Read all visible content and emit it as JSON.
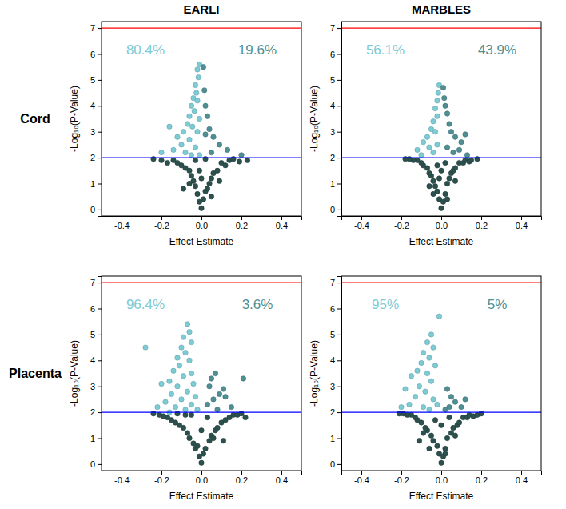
{
  "column_labels": [
    "EARLI",
    "MARBLES"
  ],
  "row_labels": [
    "Cord",
    "Placenta"
  ],
  "chart_data": [
    {
      "type": "scatter",
      "marker": "circle",
      "x_label": "Effect Estimate",
      "y_label": "-Log₁₀(P-Value)",
      "xlim": [
        -0.5,
        0.5
      ],
      "xticks": [
        -0.4,
        -0.2,
        {
          "value": 0,
          "label": "0.0"
        },
        0.2,
        0.4
      ],
      "ylim": [
        -0.25,
        7.25
      ],
      "yticks": [
        0,
        1,
        2,
        3,
        4,
        5,
        6,
        7
      ],
      "reference_lines": [
        {
          "value": 7,
          "color": "#ff0000"
        },
        {
          "value": 2,
          "color": "#0000ff"
        }
      ],
      "annotations": [
        {
          "text": "80.4%",
          "color": "#7ccbd5"
        },
        {
          "text": "19.6%",
          "color": "#4f8f94"
        }
      ],
      "series": [
        {
          "color": "#2c504d",
          "x": [
            0,
            -0.01,
            0.01,
            -0.02,
            0.02,
            -0.03,
            0.03,
            -0.04,
            0.04,
            -0.05,
            0.05,
            -0.06,
            0.06,
            -0.08,
            0.08,
            -0.1,
            0.1,
            -0.12,
            0.12,
            -0.14,
            0.14,
            -0.17,
            0.16,
            -0.2,
            0.19,
            -0.24,
            0.23,
            -0.03,
            0.02,
            -0.06,
            0.05,
            -0.01,
            0.0,
            -0.09,
            0.09
          ],
          "values": [
            0.05,
            0.3,
            0.4,
            0.6,
            0.7,
            0.9,
            0.8,
            1.1,
            1.0,
            1.3,
            1.2,
            1.5,
            1.4,
            1.6,
            1.5,
            1.7,
            1.8,
            1.8,
            1.7,
            1.9,
            1.9,
            1.8,
            1.95,
            1.9,
            1.85,
            1.95,
            1.9,
            1.9,
            1.95,
            1.0,
            0.5,
            1.5,
            1.2,
            0.8,
            1.1
          ]
        },
        {
          "color": "#7ccbd5",
          "x": [
            -0.01,
            -0.02,
            -0.015,
            -0.03,
            -0.025,
            -0.04,
            -0.02,
            -0.05,
            -0.035,
            -0.06,
            -0.01,
            -0.07,
            -0.045,
            -0.09,
            -0.02,
            -0.12,
            -0.06,
            -0.16,
            -0.1,
            -0.03,
            -0.14,
            -0.08,
            -0.05,
            -0.2,
            -0.01
          ],
          "values": [
            5.6,
            5.4,
            5.1,
            4.8,
            4.5,
            4.3,
            4.2,
            4.0,
            3.8,
            3.6,
            3.5,
            3.3,
            3.2,
            3.0,
            3.0,
            2.8,
            2.7,
            3.2,
            2.5,
            2.4,
            2.3,
            2.2,
            2.1,
            2.2,
            2.1
          ]
        },
        {
          "color": "#4f8f94",
          "x": [
            0.01,
            0.015,
            0.02,
            0.03,
            0.04,
            0.06,
            0.09,
            0.13,
            0.2,
            0.05,
            0.02
          ],
          "values": [
            5.5,
            4.6,
            4.0,
            3.6,
            3.1,
            2.8,
            2.5,
            2.3,
            2.1,
            2.2,
            2.9
          ]
        }
      ]
    },
    {
      "type": "scatter",
      "marker": "circle",
      "x_label": "Effect Estimate",
      "y_label": "-Log₁₀(P-Value)",
      "xlim": [
        -0.5,
        0.5
      ],
      "xticks": [
        -0.4,
        -0.2,
        {
          "value": 0,
          "label": "0.0"
        },
        0.2,
        0.4
      ],
      "ylim": [
        -0.25,
        7.25
      ],
      "yticks": [
        0,
        1,
        2,
        3,
        4,
        5,
        6,
        7
      ],
      "reference_lines": [
        {
          "value": 7,
          "color": "#ff0000"
        },
        {
          "value": 2,
          "color": "#0000ff"
        }
      ],
      "annotations": [
        {
          "text": "56.1%",
          "color": "#7ccbd5"
        },
        {
          "text": "43.9%",
          "color": "#4f8f94"
        }
      ],
      "series": [
        {
          "color": "#2c504d",
          "x": [
            0,
            -0.01,
            0.01,
            -0.02,
            0.02,
            -0.03,
            0.03,
            -0.04,
            0.04,
            -0.05,
            0.05,
            -0.06,
            0.06,
            -0.07,
            0.07,
            -0.09,
            0.09,
            -0.1,
            0.11,
            -0.12,
            0.12,
            -0.14,
            0.14,
            -0.16,
            0.15,
            -0.18,
            0.18,
            -0.02,
            0.02,
            -0.04,
            0.03,
            -0.01,
            0.0,
            -0.06,
            0.07
          ],
          "values": [
            0.05,
            0.4,
            0.3,
            0.7,
            0.6,
            0.9,
            1.0,
            1.1,
            1.2,
            1.3,
            1.4,
            1.4,
            1.5,
            1.6,
            1.6,
            1.7,
            1.8,
            1.8,
            1.8,
            1.9,
            1.9,
            1.9,
            1.85,
            1.95,
            1.9,
            1.95,
            1.95,
            1.7,
            1.8,
            0.6,
            0.4,
            1.2,
            1.5,
            0.9,
            1.1
          ]
        },
        {
          "color": "#7ccbd5",
          "x": [
            -0.01,
            -0.015,
            -0.02,
            -0.03,
            -0.02,
            -0.04,
            -0.05,
            -0.03,
            -0.07,
            -0.09,
            -0.06,
            -0.12,
            -0.1,
            -0.04,
            -0.02
          ],
          "values": [
            4.8,
            4.5,
            4.2,
            3.9,
            3.6,
            3.4,
            3.1,
            3.0,
            2.8,
            2.6,
            2.4,
            2.3,
            2.1,
            2.2,
            2.5
          ]
        },
        {
          "color": "#4f8f94",
          "x": [
            0.01,
            0.015,
            0.02,
            0.03,
            0.04,
            0.05,
            0.07,
            0.1,
            0.12,
            0.09,
            0.06,
            0.03,
            0.13
          ],
          "values": [
            4.7,
            4.3,
            4.0,
            3.7,
            3.3,
            3.0,
            2.8,
            2.6,
            2.9,
            2.3,
            2.2,
            2.4,
            2.1
          ]
        }
      ]
    },
    {
      "type": "scatter",
      "marker": "circle",
      "x_label": "Effect Estimate",
      "y_label": "-Log₁₀(P-Value)",
      "xlim": [
        -0.5,
        0.5
      ],
      "xticks": [
        -0.4,
        -0.2,
        {
          "value": 0,
          "label": "0.0"
        },
        0.2,
        0.4
      ],
      "ylim": [
        -0.25,
        7.25
      ],
      "yticks": [
        0,
        1,
        2,
        3,
        4,
        5,
        6,
        7
      ],
      "reference_lines": [
        {
          "value": 7,
          "color": "#ff0000"
        },
        {
          "value": 2,
          "color": "#0000ff"
        }
      ],
      "annotations": [
        {
          "text": "96.4%",
          "color": "#7ccbd5"
        },
        {
          "text": "3.6%",
          "color": "#4f8f94"
        }
      ],
      "series": [
        {
          "color": "#2c504d",
          "x": [
            0,
            -0.01,
            0.01,
            -0.03,
            0.02,
            -0.04,
            0.04,
            -0.06,
            0.05,
            -0.07,
            0.07,
            -0.09,
            0.08,
            -0.11,
            0.1,
            -0.13,
            0.12,
            -0.15,
            0.14,
            -0.17,
            0.16,
            -0.19,
            0.18,
            -0.21,
            0.2,
            -0.24,
            0.22,
            -0.05,
            0.03,
            -0.08,
            0.06,
            -0.02,
            0.0,
            -0.12,
            0.11
          ],
          "values": [
            0.05,
            0.3,
            0.4,
            0.6,
            0.6,
            0.8,
            0.9,
            1.0,
            1.1,
            1.2,
            1.3,
            1.4,
            1.4,
            1.5,
            1.6,
            1.6,
            1.7,
            1.7,
            1.8,
            1.8,
            1.9,
            1.85,
            1.9,
            1.9,
            1.95,
            1.95,
            1.8,
            1.9,
            1.8,
            1.9,
            1.0,
            0.7,
            1.3,
            1.95,
            0.9
          ]
        },
        {
          "color": "#7ccbd5",
          "x": [
            -0.07,
            -0.06,
            -0.09,
            -0.05,
            -0.1,
            -0.28,
            -0.08,
            -0.12,
            -0.06,
            -0.11,
            -0.14,
            -0.05,
            -0.09,
            -0.16,
            -0.04,
            -0.12,
            -0.2,
            -0.07,
            -0.15,
            -0.03,
            -0.1,
            -0.18,
            -0.05,
            -0.13,
            -0.08,
            -0.22,
            -0.02,
            -0.16
          ],
          "values": [
            5.4,
            5.1,
            4.9,
            4.7,
            4.5,
            4.5,
            4.3,
            4.1,
            4.0,
            3.8,
            3.6,
            3.5,
            3.4,
            3.2,
            3.1,
            3.0,
            3.1,
            2.8,
            2.7,
            2.6,
            2.5,
            2.4,
            2.3,
            2.2,
            2.1,
            2.2,
            2.1,
            2.0
          ]
        },
        {
          "color": "#4f8f94",
          "x": [
            0.05,
            0.07,
            0.04,
            0.09,
            0.06,
            0.12,
            0.03,
            0.15,
            0.08,
            0.21,
            0.11
          ],
          "values": [
            3.3,
            3.5,
            3.0,
            2.7,
            2.5,
            2.6,
            2.3,
            2.2,
            2.1,
            3.3,
            2.9
          ]
        }
      ]
    },
    {
      "type": "scatter",
      "marker": "circle",
      "x_label": "Effect Estimate",
      "y_label": "-Log₁₀(P-Value)",
      "xlim": [
        -0.5,
        0.5
      ],
      "xticks": [
        -0.4,
        -0.2,
        {
          "value": 0,
          "label": "0.0"
        },
        0.2,
        0.4
      ],
      "ylim": [
        -0.25,
        7.25
      ],
      "yticks": [
        0,
        1,
        2,
        3,
        4,
        5,
        6,
        7
      ],
      "reference_lines": [
        {
          "value": 7,
          "color": "#ff0000"
        },
        {
          "value": 2,
          "color": "#0000ff"
        }
      ],
      "annotations": [
        {
          "text": "95%",
          "color": "#7ccbd5"
        },
        {
          "text": "5%",
          "color": "#4f8f94"
        }
      ],
      "series": [
        {
          "color": "#2c504d",
          "x": [
            0,
            -0.01,
            0.01,
            -0.02,
            0.02,
            -0.04,
            0.03,
            -0.05,
            0.05,
            -0.07,
            0.06,
            -0.08,
            0.08,
            -0.1,
            0.09,
            -0.12,
            0.11,
            -0.13,
            0.13,
            -0.15,
            0.14,
            -0.17,
            0.16,
            -0.19,
            0.18,
            -0.21,
            0.2,
            -0.03,
            0.04,
            -0.06,
            0.02,
            -0.09,
            0.0,
            -0.11,
            0.07
          ],
          "values": [
            0.05,
            0.4,
            0.3,
            0.7,
            0.6,
            0.9,
            1.0,
            1.1,
            1.2,
            1.3,
            1.4,
            1.4,
            1.5,
            1.6,
            1.6,
            1.7,
            1.8,
            1.8,
            1.8,
            1.9,
            1.9,
            1.9,
            1.85,
            1.95,
            1.9,
            1.95,
            1.95,
            1.7,
            1.8,
            0.6,
            0.4,
            1.2,
            1.5,
            0.9,
            1.1
          ]
        },
        {
          "color": "#7ccbd5",
          "x": [
            -0.01,
            -0.05,
            -0.07,
            -0.04,
            -0.09,
            -0.06,
            -0.1,
            -0.03,
            -0.12,
            -0.07,
            -0.15,
            -0.05,
            -0.11,
            -0.18,
            -0.08,
            -0.13,
            -0.04,
            -0.16,
            -0.09,
            -0.2,
            -0.06,
            -0.02
          ],
          "values": [
            5.7,
            5.0,
            4.7,
            4.5,
            4.3,
            4.1,
            3.9,
            3.8,
            3.6,
            3.5,
            3.4,
            3.2,
            3.0,
            2.9,
            2.8,
            2.6,
            2.5,
            2.3,
            2.2,
            2.2,
            2.1,
            2.3
          ]
        },
        {
          "color": "#4f8f94",
          "x": [
            0.03,
            0.05,
            0.07,
            0.1,
            0.04,
            0.12,
            0.02
          ],
          "values": [
            2.9,
            2.6,
            2.4,
            2.2,
            2.2,
            2.5,
            2.1
          ]
        }
      ]
    }
  ]
}
